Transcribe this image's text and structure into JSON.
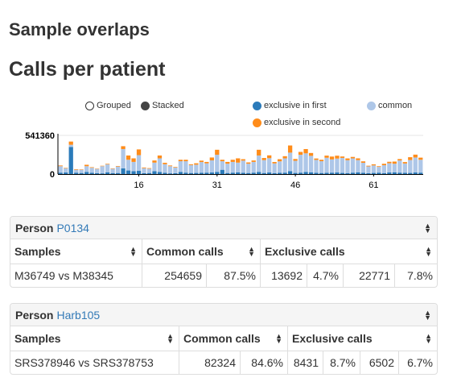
{
  "page": {
    "section_title": "Sample overlaps",
    "heading": "Calls per patient"
  },
  "legend": {
    "grouped": "Grouped",
    "stacked": "Stacked",
    "exclusive_first": "exclusive in first",
    "common": "common",
    "exclusive_second": "exclusive in second"
  },
  "colors": {
    "exclusive_first": "#2b7bba",
    "common": "#aec7e8",
    "exclusive_second": "#ff8c1a",
    "link": "#337ab7"
  },
  "chart_data": {
    "type": "bar",
    "stacked": true,
    "ylim": [
      0,
      541360
    ],
    "y_ticks": [
      "541360",
      "0"
    ],
    "x_ticks": [
      "16",
      "31",
      "46",
      "61"
    ],
    "categories": [
      1,
      2,
      3,
      4,
      5,
      6,
      7,
      8,
      9,
      10,
      11,
      12,
      13,
      14,
      15,
      16,
      17,
      18,
      19,
      20,
      21,
      22,
      23,
      24,
      25,
      26,
      27,
      28,
      29,
      30,
      31,
      32,
      33,
      34,
      35,
      36,
      37,
      38,
      39,
      40,
      41,
      42,
      43,
      44,
      45,
      46,
      47,
      48,
      49,
      50,
      51,
      52,
      53,
      54,
      55,
      56,
      57,
      58,
      59,
      60,
      61,
      62,
      63,
      64,
      65,
      66,
      67,
      68,
      69,
      70
    ],
    "series": [
      {
        "name": "exclusive in first",
        "values": [
          20000,
          22000,
          380000,
          20000,
          15000,
          30000,
          18000,
          12000,
          10000,
          25000,
          14000,
          15000,
          80000,
          50000,
          40000,
          45000,
          12000,
          15000,
          40000,
          30000,
          18000,
          10000,
          12000,
          30000,
          20000,
          15000,
          16000,
          18000,
          20000,
          22000,
          30000,
          60000,
          15000,
          20000,
          25000,
          18000,
          15000,
          20000,
          30000,
          15000,
          22000,
          14000,
          18000,
          20000,
          40000,
          16000,
          20000,
          30000,
          25000,
          18000,
          15000,
          18000,
          20000,
          22000,
          16000,
          14000,
          20000,
          25000,
          18000,
          12000,
          16000,
          20000,
          14000,
          22000,
          25000,
          20000,
          18000,
          16000,
          22000,
          20000
        ]
      },
      {
        "name": "common",
        "values": [
          90000,
          60000,
          30000,
          40000,
          45000,
          80000,
          70000,
          60000,
          100000,
          110000,
          60000,
          90000,
          270000,
          150000,
          130000,
          220000,
          70000,
          60000,
          120000,
          190000,
          120000,
          100000,
          80000,
          150000,
          160000,
          110000,
          115000,
          150000,
          130000,
          170000,
          240000,
          120000,
          130000,
          150000,
          135000,
          170000,
          130000,
          150000,
          230000,
          180000,
          200000,
          135000,
          160000,
          200000,
          260000,
          170000,
          250000,
          260000,
          230000,
          180000,
          165000,
          210000,
          185000,
          195000,
          210000,
          180000,
          200000,
          170000,
          140000,
          95000,
          105000,
          80000,
          110000,
          130000,
          120000,
          170000,
          130000,
          180000,
          210000,
          180000
        ]
      },
      {
        "name": "exclusive in second",
        "values": [
          10000,
          6000,
          45000,
          8000,
          6000,
          20000,
          8000,
          5000,
          6000,
          8000,
          6000,
          8000,
          40000,
          60000,
          50000,
          80000,
          10000,
          8000,
          30000,
          40000,
          20000,
          10000,
          8000,
          20000,
          20000,
          12000,
          20000,
          20000,
          20000,
          40000,
          70000,
          20000,
          25000,
          30000,
          60000,
          20000,
          18000,
          20000,
          80000,
          30000,
          40000,
          20000,
          30000,
          30000,
          100000,
          25000,
          40000,
          60000,
          40000,
          20000,
          20000,
          30000,
          40000,
          40000,
          20000,
          25000,
          20000,
          25000,
          20000,
          10000,
          15000,
          10000,
          20000,
          20000,
          30000,
          20000,
          20000,
          40000,
          40000,
          30000
        ]
      }
    ]
  },
  "panels": [
    {
      "label": "Person",
      "person": "P0134",
      "columns": [
        "Samples",
        "Common calls",
        "Exclusive calls"
      ],
      "row": {
        "samples": "M36749 vs M38345",
        "common_count": "254659",
        "common_pct": "87.5%",
        "excl1_count": "13692",
        "excl1_pct": "4.7%",
        "excl2_count": "22771",
        "excl2_pct": "7.8%"
      }
    },
    {
      "label": "Person",
      "person": "Harb105",
      "columns": [
        "Samples",
        "Common calls",
        "Exclusive calls"
      ],
      "row": {
        "samples": "SRS378946 vs SRS378753",
        "common_count": "82324",
        "common_pct": "84.6%",
        "excl1_count": "8431",
        "excl1_pct": "8.7%",
        "excl2_count": "6502",
        "excl2_pct": "6.7%"
      }
    }
  ]
}
